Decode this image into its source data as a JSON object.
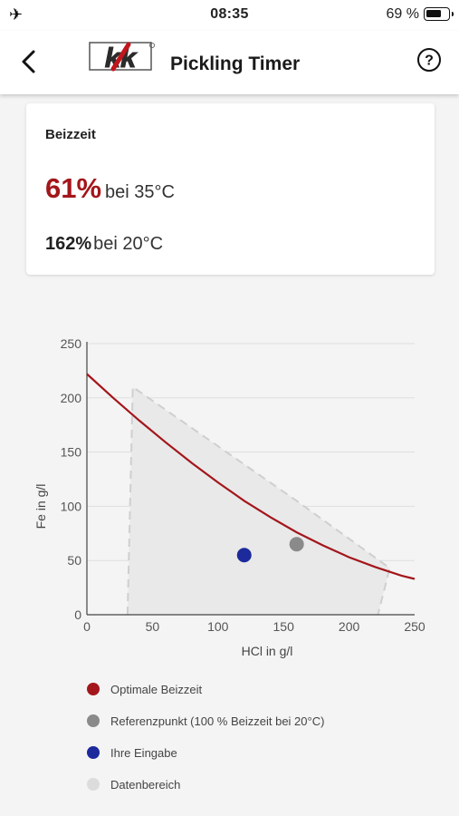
{
  "status_bar": {
    "time": "08:35",
    "battery_text": "69 %",
    "battery_level": 0.69
  },
  "nav": {
    "title": "Pickling Timer",
    "logo_text": "kk",
    "help_symbol": "?"
  },
  "card": {
    "heading": "Beizzeit",
    "primary_value": "61%",
    "primary_text": "bei 35°C",
    "secondary_value": "162%",
    "secondary_text": "bei 20°C"
  },
  "colors": {
    "accent": "#a3161b",
    "reference": "#8a8a8a",
    "input": "#1c2a9c",
    "range": "#dcdcdc"
  },
  "chart_data": {
    "type": "scatter",
    "xlabel": "HCl in g/l",
    "ylabel": "Fe in g/l",
    "xlim": [
      0,
      250
    ],
    "ylim": [
      0,
      250
    ],
    "xticks": [
      0,
      50,
      100,
      150,
      200,
      250
    ],
    "yticks": [
      0,
      50,
      100,
      150,
      200,
      250
    ],
    "grid": "horizontal",
    "data_range": [
      [
        31,
        0
      ],
      [
        35,
        210
      ],
      [
        160,
        105
      ],
      [
        231,
        43
      ],
      [
        222,
        0
      ]
    ],
    "optimal_curve": [
      [
        0,
        222
      ],
      [
        20,
        200
      ],
      [
        40,
        179
      ],
      [
        60,
        159
      ],
      [
        80,
        140
      ],
      [
        100,
        122
      ],
      [
        120,
        105
      ],
      [
        140,
        90
      ],
      [
        160,
        76
      ],
      [
        180,
        64
      ],
      [
        200,
        53
      ],
      [
        220,
        44
      ],
      [
        240,
        36
      ],
      [
        250,
        33
      ]
    ],
    "reference_point": {
      "x": 160,
      "y": 65
    },
    "input_point": {
      "x": 120,
      "y": 55
    },
    "legend": [
      {
        "label": "Optimale Beizzeit",
        "color": "#a3161b"
      },
      {
        "label": "Referenzpunkt (100 % Beizzeit bei 20°C)",
        "color": "#8a8a8a"
      },
      {
        "label": "Ihre Eingabe",
        "color": "#1c2a9c"
      },
      {
        "label": "Datenbereich",
        "color": "#dcdcdc"
      }
    ]
  }
}
